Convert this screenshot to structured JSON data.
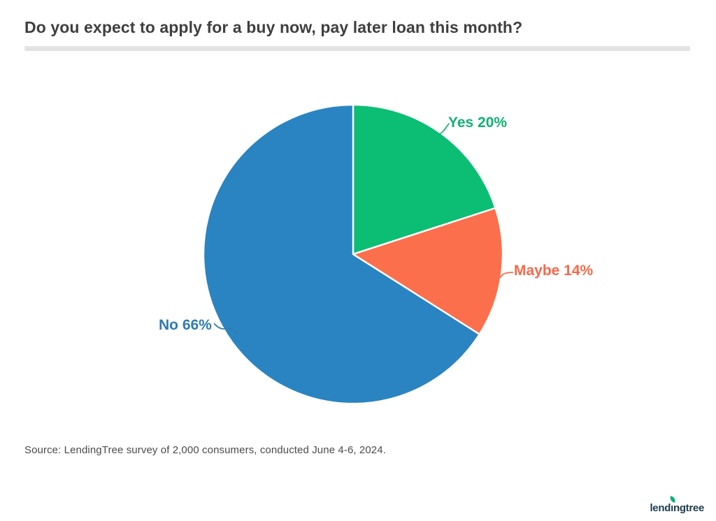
{
  "title": "Do you expect to apply for a buy now, pay later loan this month?",
  "source_note": "Source: LendingTree survey of 2,000 consumers, conducted June 4-6, 2024.",
  "logo": {
    "text": "lendingtree",
    "prefix": "lend",
    "dotless_i": "ı",
    "suffix": "ngtree",
    "text_color": "#1d3b4e",
    "leaf_color": "#00b274"
  },
  "divider_color": "#e3e3e3",
  "chart_data": {
    "type": "pie",
    "title": "Do you expect to apply for a buy now, pay later loan this month?",
    "start_angle_deg": -90,
    "direction": "clockwise",
    "total": 100,
    "legend_position": "outside-callout-labels",
    "slices": [
      {
        "label": "Yes",
        "value": 20,
        "display": "Yes 20%",
        "color": "#0cbe74",
        "label_color": "#12b173"
      },
      {
        "label": "Maybe",
        "value": 14,
        "display": "Maybe 14%",
        "color": "#fb6f4c",
        "label_color": "#f5694a"
      },
      {
        "label": "No",
        "value": 66,
        "display": "No 66%",
        "color": "#2a84c1",
        "label_color": "#2e7bb1"
      }
    ]
  }
}
